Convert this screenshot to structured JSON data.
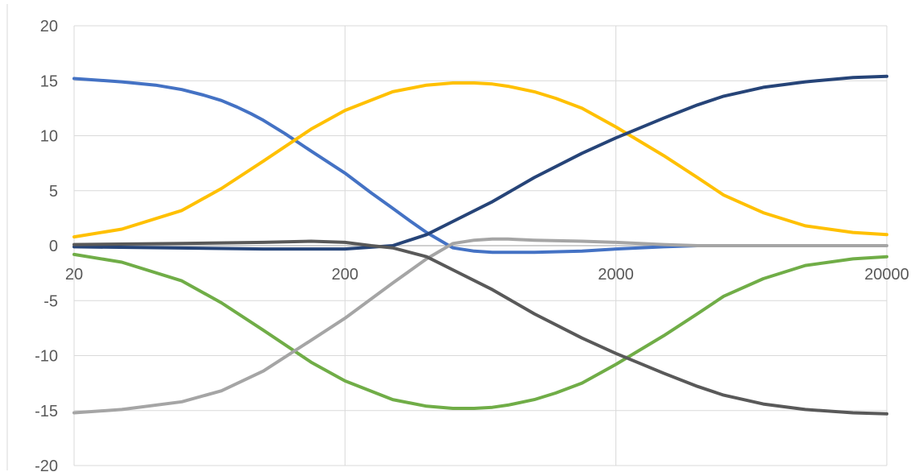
{
  "chart_data": {
    "type": "line",
    "title": "",
    "xlabel": "",
    "ylabel": "",
    "x_scale": "log",
    "xlim": [
      20,
      20000
    ],
    "ylim": [
      -20,
      20
    ],
    "x_ticks": [
      20,
      200,
      2000,
      20000
    ],
    "x_tick_labels": [
      "20",
      "200",
      "2000",
      "20000"
    ],
    "y_ticks": [
      -20,
      -15,
      -10,
      -5,
      0,
      5,
      10,
      15,
      20
    ],
    "y_tick_labels": [
      "-20",
      "-15",
      "-10",
      "-5",
      "0",
      "5",
      "10",
      "15",
      "20"
    ],
    "grid": true,
    "legend": "none",
    "series": [
      {
        "color": "#4472C4",
        "x": [
          20,
          30,
          40,
          50,
          60,
          70,
          80,
          90,
          100,
          120,
          150,
          200,
          250,
          300,
          350,
          400,
          500,
          600,
          700,
          800,
          1000,
          1500,
          2000,
          3000,
          4000
        ],
        "y": [
          15.2,
          14.9,
          14.6,
          14.2,
          13.7,
          13.2,
          12.6,
          12.0,
          11.4,
          10.2,
          8.6,
          6.6,
          4.8,
          3.4,
          2.2,
          1.2,
          -0.2,
          -0.5,
          -0.6,
          -0.6,
          -0.6,
          -0.5,
          -0.3,
          -0.1,
          0.0
        ]
      },
      {
        "color": "#FFC000",
        "x": [
          20,
          30,
          50,
          70,
          100,
          150,
          200,
          300,
          400,
          500,
          600,
          700,
          800,
          1000,
          1200,
          1500,
          2000,
          3000,
          4000,
          5000,
          7000,
          10000,
          15000,
          20000
        ],
        "y": [
          0.8,
          1.5,
          3.2,
          5.2,
          7.7,
          10.6,
          12.3,
          14.0,
          14.6,
          14.8,
          14.8,
          14.7,
          14.5,
          14.0,
          13.4,
          12.5,
          10.8,
          8.2,
          6.2,
          4.6,
          3.0,
          1.8,
          1.2,
          1.0
        ]
      },
      {
        "color": "#264478",
        "x": [
          20,
          100,
          200,
          300,
          400,
          500,
          700,
          1000,
          1500,
          2000,
          3000,
          4000,
          5000,
          7000,
          10000,
          15000,
          20000
        ],
        "y": [
          -0.1,
          -0.3,
          -0.3,
          0.0,
          1.0,
          2.2,
          4.0,
          6.2,
          8.4,
          9.8,
          11.6,
          12.8,
          13.6,
          14.4,
          14.9,
          15.3,
          15.4
        ]
      },
      {
        "color": "#70AD47",
        "x": [
          20,
          30,
          50,
          70,
          100,
          150,
          200,
          300,
          400,
          500,
          600,
          700,
          800,
          1000,
          1200,
          1500,
          2000,
          3000,
          4000,
          5000,
          7000,
          10000,
          15000,
          20000
        ],
        "y": [
          -0.8,
          -1.5,
          -3.2,
          -5.2,
          -7.7,
          -10.6,
          -12.3,
          -14.0,
          -14.6,
          -14.8,
          -14.8,
          -14.7,
          -14.5,
          -14.0,
          -13.4,
          -12.5,
          -10.8,
          -8.2,
          -6.2,
          -4.6,
          -3.0,
          -1.8,
          -1.2,
          -1.0
        ]
      },
      {
        "color": "#A5A5A5",
        "x": [
          20,
          30,
          50,
          70,
          100,
          150,
          200,
          300,
          400,
          500,
          600,
          700,
          800,
          1000,
          1500,
          2000,
          3000,
          4000,
          5000,
          7000,
          10000,
          20000
        ],
        "y": [
          -15.2,
          -14.9,
          -14.2,
          -13.2,
          -11.4,
          -8.6,
          -6.6,
          -3.4,
          -1.2,
          0.2,
          0.5,
          0.6,
          0.6,
          0.5,
          0.4,
          0.3,
          0.1,
          0.0,
          0.0,
          0.0,
          0.0,
          0.0
        ]
      },
      {
        "color": "#595959",
        "x": [
          20,
          50,
          100,
          150,
          200,
          250,
          300,
          400,
          500,
          700,
          1000,
          1500,
          2000,
          3000,
          4000,
          5000,
          7000,
          10000,
          15000,
          20000
        ],
        "y": [
          0.1,
          0.2,
          0.3,
          0.4,
          0.3,
          0.0,
          -0.2,
          -1.0,
          -2.2,
          -4.0,
          -6.2,
          -8.4,
          -9.8,
          -11.6,
          -12.8,
          -13.6,
          -14.4,
          -14.9,
          -15.2,
          -15.3
        ]
      }
    ]
  }
}
